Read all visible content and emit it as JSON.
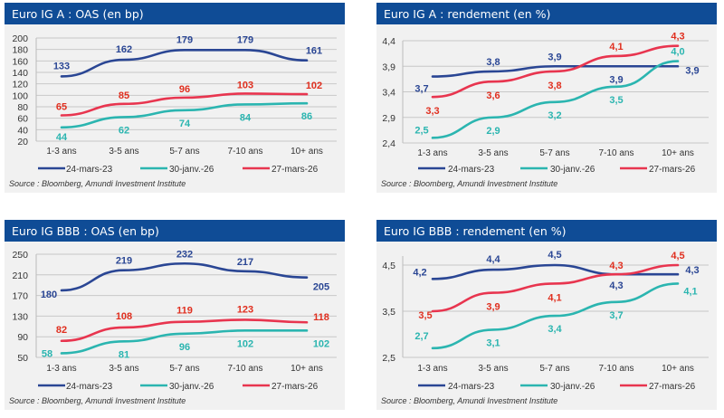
{
  "colors": {
    "title_bar": "#0f4c96",
    "panel_bg": "#f1f1f1",
    "grid": "#c8c8c8",
    "series": [
      "#2a4694",
      "#2bb5b0",
      "#e8354f"
    ],
    "labels": [
      "#2a4694",
      "#2bb5b0",
      "#e02f1f"
    ]
  },
  "chart_data": [
    {
      "type": "line",
      "title": "Euro IG A : OAS (en bp)",
      "categories": [
        "1-3 ans",
        "3-5 ans",
        "5-7 ans",
        "7-10 ans",
        "10+ ans"
      ],
      "yticks": [
        "200",
        "180",
        "160",
        "140",
        "120",
        "100",
        "80",
        "60",
        "40",
        "20"
      ],
      "ylim": [
        20,
        200
      ],
      "grid": true,
      "legend": "bottom",
      "series": [
        {
          "name": "24-mars-23",
          "values": [
            133,
            162,
            179,
            179,
            161
          ]
        },
        {
          "name": "30-janv.-26",
          "values": [
            44,
            62,
            74,
            84,
            86
          ]
        },
        {
          "name": "27-mars-26",
          "values": [
            65,
            85,
            96,
            103,
            102
          ]
        }
      ],
      "source": "Source : Bloomberg, Amundi Investment Institute"
    },
    {
      "type": "line",
      "title": "Euro IG A : rendement (en %)",
      "categories": [
        "1-3 ans",
        "3-5 ans",
        "5-7 ans",
        "7-10 ans",
        "10+ ans"
      ],
      "yticks": [
        "4,4",
        "3,9",
        "3,4",
        "2,9",
        "2,4"
      ],
      "ylim": [
        2.4,
        4.4
      ],
      "grid": true,
      "legend": "bottom",
      "series": [
        {
          "name": "24-mars-23",
          "values": [
            3.7,
            3.8,
            3.9,
            3.9,
            3.9
          ],
          "labels": [
            "3,7",
            "3,8",
            "3,9",
            "3,9",
            "3,9"
          ]
        },
        {
          "name": "30-janv.-26",
          "values": [
            2.5,
            2.9,
            3.2,
            3.5,
            4.0
          ],
          "labels": [
            "2,5",
            "2,9",
            "3,2",
            "3,5",
            "4,0"
          ]
        },
        {
          "name": "27-mars-26",
          "values": [
            3.3,
            3.6,
            3.8,
            4.1,
            4.3
          ],
          "labels": [
            "3,3",
            "3,6",
            "3,8",
            "4,1",
            "4,3"
          ]
        }
      ],
      "source": "Source : Bloomberg, Amundi Investment Institute"
    },
    {
      "type": "line",
      "title": "Euro IG BBB : OAS (en bp)",
      "categories": [
        "1-3 ans",
        "3-5 ans",
        "5-7 ans",
        "7-10 ans",
        "10+ ans"
      ],
      "yticks": [
        "250",
        "210",
        "170",
        "130",
        "90",
        "50"
      ],
      "ylim": [
        50,
        250
      ],
      "grid": true,
      "legend": "bottom",
      "series": [
        {
          "name": "24-mars-23",
          "values": [
            180,
            219,
            232,
            217,
            205
          ]
        },
        {
          "name": "30-janv.-26",
          "values": [
            58,
            81,
            96,
            102,
            102
          ]
        },
        {
          "name": "27-mars-26",
          "values": [
            82,
            108,
            119,
            123,
            118
          ]
        }
      ],
      "source": "Source : Bloomberg, Amundi Investment Institute"
    },
    {
      "type": "line",
      "title": "Euro IG BBB : rendement (en %)",
      "categories": [
        "1-3 ans",
        "3-5 ans",
        "5-7 ans",
        "7-10 ans",
        "10+ ans"
      ],
      "yticks": [
        "4,5",
        "3,5",
        "2,5"
      ],
      "ylim": [
        2.5,
        4.5
      ],
      "grid": true,
      "legend": "bottom",
      "series": [
        {
          "name": "24-mars-23",
          "values": [
            4.2,
            4.4,
            4.5,
            4.3,
            4.3
          ],
          "labels": [
            "4,2",
            "4,4",
            "4,5",
            "4,3",
            "4,3"
          ]
        },
        {
          "name": "30-janv.-26",
          "values": [
            2.7,
            3.1,
            3.4,
            3.7,
            4.1
          ],
          "labels": [
            "2,7",
            "3,1",
            "3,4",
            "3,7",
            "4,1"
          ]
        },
        {
          "name": "27-mars-26",
          "values": [
            3.5,
            3.9,
            4.1,
            4.3,
            4.5
          ],
          "labels": [
            "3,5",
            "3,9",
            "4,1",
            "4,3",
            "4,5"
          ]
        }
      ],
      "source": "Source : Bloomberg, Amundi Investment Institute"
    }
  ]
}
